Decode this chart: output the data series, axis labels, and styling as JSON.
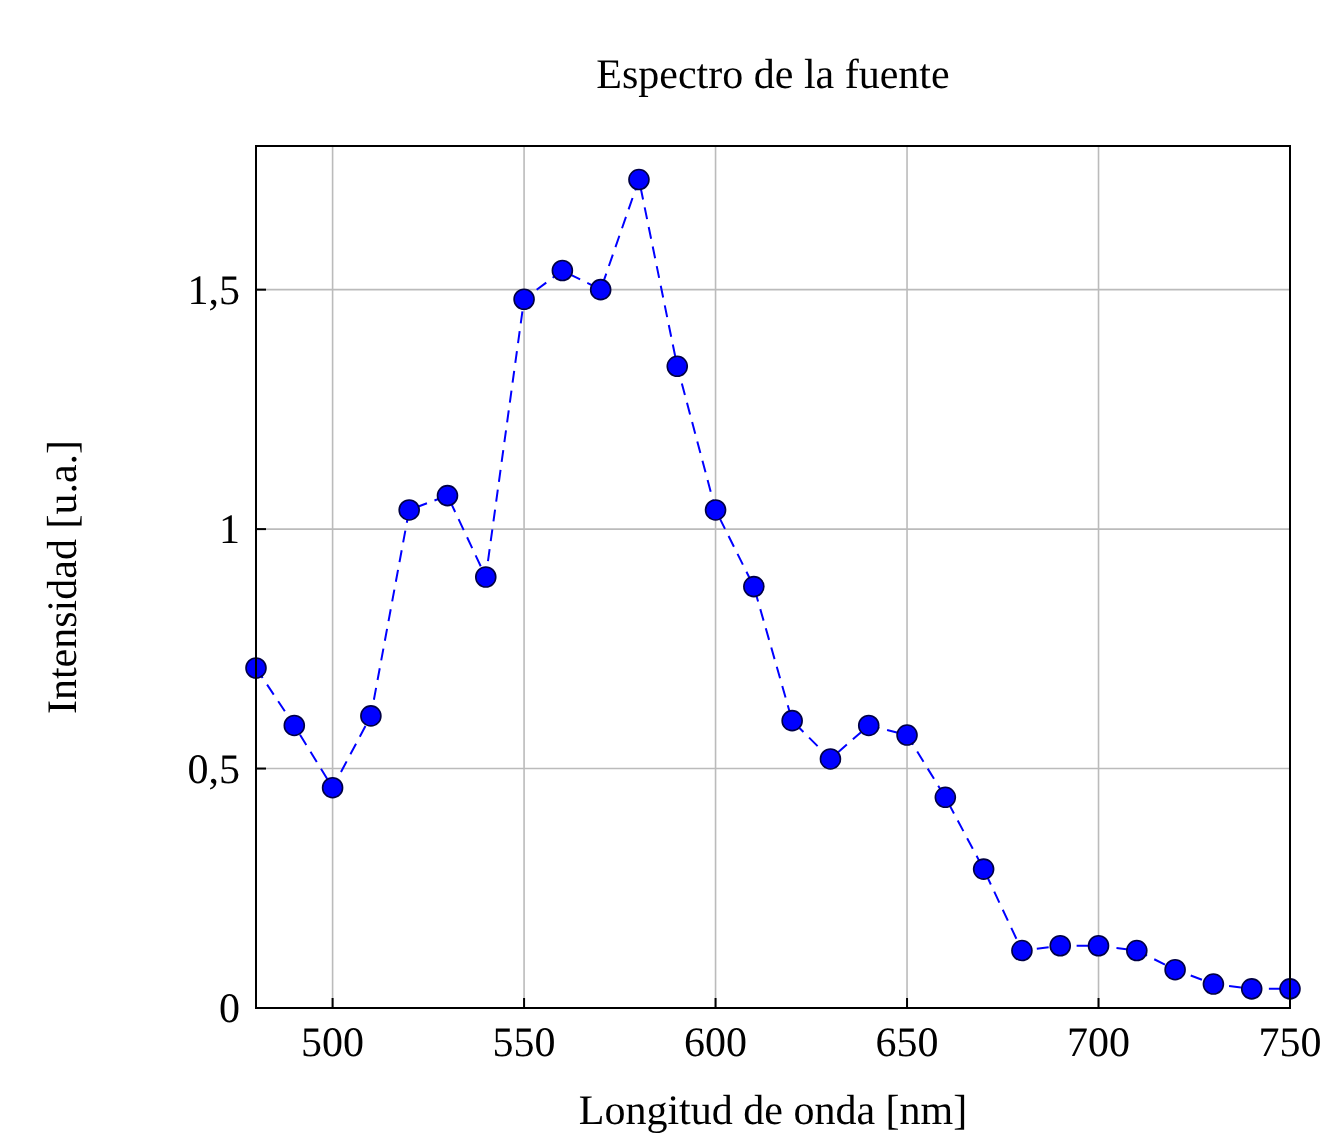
{
  "chart_data": {
    "type": "line",
    "title": "Espectro de la fuente",
    "xlabel": "Longitud de onda [nm]",
    "ylabel": "Intensidad [u.a.]",
    "x": [
      480,
      490,
      500,
      510,
      520,
      530,
      540,
      550,
      560,
      570,
      580,
      590,
      600,
      610,
      620,
      630,
      640,
      650,
      660,
      670,
      680,
      690,
      700,
      710,
      720,
      730,
      740,
      750
    ],
    "series": [
      {
        "color": "#0000ff",
        "values": [
          0.71,
          0.59,
          0.46,
          0.61,
          1.04,
          1.07,
          0.9,
          1.48,
          1.54,
          1.5,
          1.73,
          1.34,
          1.04,
          0.88,
          0.6,
          0.52,
          0.59,
          0.57,
          0.44,
          0.29,
          0.12,
          0.13,
          0.13,
          0.12,
          0.08,
          0.05,
          0.04,
          0.04
        ]
      }
    ],
    "xlim": [
      480,
      750
    ],
    "xticks": [
      500,
      550,
      600,
      650,
      700,
      750
    ],
    "ylim": [
      0,
      1.8
    ],
    "yticks": [
      0,
      {
        "value": 0.5,
        "label": "0,5"
      },
      1,
      {
        "value": 1.5,
        "label": "1,5"
      }
    ],
    "grid": true,
    "marker": "circle",
    "line_style": "dashed"
  }
}
